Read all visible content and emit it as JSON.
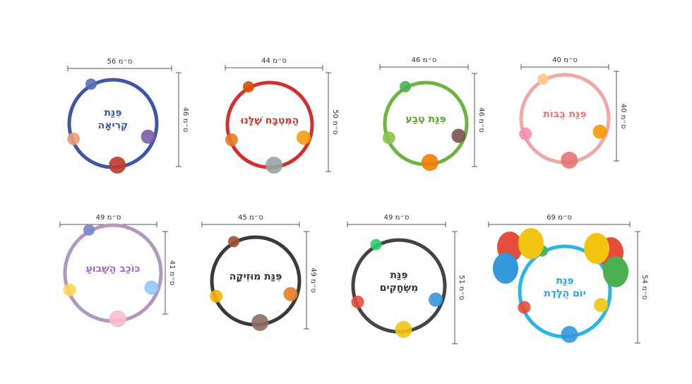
{
  "items": [
    {
      "title_lines": [
        "פִּנַּת",
        "קְרִיאָה"
      ],
      "width": "56 ס״מ",
      "height": "46 ס״מ"
    },
    {
      "title_lines": [
        "הַמִּטְבָּח שֶׁלָּנוּ"
      ],
      "width": "44 ס״מ",
      "height": "50 ס״מ"
    },
    {
      "title_lines": [
        "פִּנַּת טֶבַע"
      ],
      "width": "46 ס״מ",
      "height": "46 ס״מ"
    },
    {
      "title_lines": [
        "פִּנַּת בֻּבּוֹת"
      ],
      "width": "40 ס״מ",
      "height": "40 ס״מ"
    },
    {
      "title_lines": [
        "כּוֹכַב הַשָּׁבוּעַ"
      ],
      "width": "49 ס״מ",
      "height": "41 ס״מ"
    },
    {
      "title_lines": [
        "פִּנַּת מוּזִיקָה"
      ],
      "width": "45 ס״מ",
      "height": "49 ס״מ"
    },
    {
      "title_lines": [
        "פִּנַּת",
        "מִשְׂחָקִים"
      ],
      "width": "49 ס״מ",
      "height": "51 ס״מ"
    },
    {
      "title_lines": [
        "פִּנַּת",
        "יוֹם הֻלֶּדֶת"
      ],
      "width": "69 ס״מ",
      "height": "54 ס״מ"
    }
  ]
}
